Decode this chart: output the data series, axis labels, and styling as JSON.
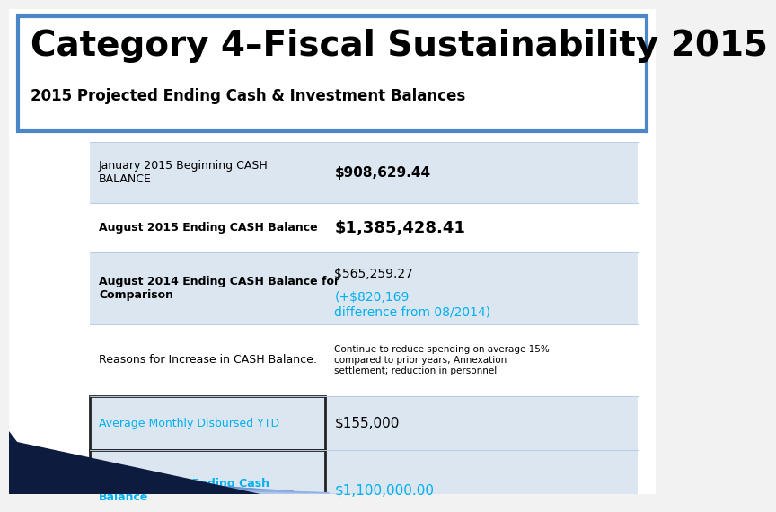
{
  "title_line1": "Category 4–Fiscal Sustainability 2015",
  "title_line2": "2015 Projected Ending Cash & Investment Balances",
  "title_border_color": "#4a86c8",
  "title_bg_color": "#ffffff",
  "bg_color": "#f0f0f0",
  "table_rows": [
    {
      "label": "January 2015 Beginning CASH\nBALANCE",
      "value": "$908,629.44",
      "value_color": "#000000",
      "value_bold": true,
      "value_fs": 11,
      "label_bold": false,
      "label_color": "#000000",
      "row_bg": "#dce6f1",
      "label_box": false
    },
    {
      "label": "August 2015 Ending CASH Balance",
      "value": "$1,385,428.41",
      "value_color": "#000000",
      "value_bold": true,
      "value_fs": 13,
      "label_bold": true,
      "label_color": "#000000",
      "row_bg": "#ffffff",
      "label_box": false
    },
    {
      "label": "August 2014 Ending CASH Balance for\nComparison",
      "value_part1": "$565,259.27 ",
      "value_part2": "(+$820,169\ndifference from 08/2014)",
      "value_color1": "#000000",
      "value_color2": "#00b0f0",
      "value_fs": 10,
      "label_bold": true,
      "label_color": "#000000",
      "row_bg": "#dce6f1",
      "label_box": false
    },
    {
      "label": "Reasons for Increase in CASH Balance:",
      "value": "Continue to reduce spending on average 15%\ncompared to prior years; Annexation\nsettlement; reduction in personnel",
      "value_color": "#000000",
      "value_bold": false,
      "value_fs": 7.5,
      "label_bold": false,
      "label_color": "#000000",
      "row_bg": "#ffffff",
      "label_box": false,
      "value_small": true
    },
    {
      "label": "Average Monthly Disbursed YTD",
      "value": "$155,000",
      "value_color": "#000000",
      "value_bold": false,
      "value_fs": 11,
      "label_bold": false,
      "label_color": "#00b0f0",
      "row_bg": "#dce6f1",
      "label_box": true
    },
    {
      "label": "Projected YTD Ending Cash\nBalance",
      "value": "$1,100,000.00",
      "value_color": "#00b0f0",
      "value_bold": false,
      "value_fs": 11,
      "label_bold": true,
      "label_color": "#00b0f0",
      "row_bg": "#dce6f1",
      "label_box": true
    }
  ]
}
